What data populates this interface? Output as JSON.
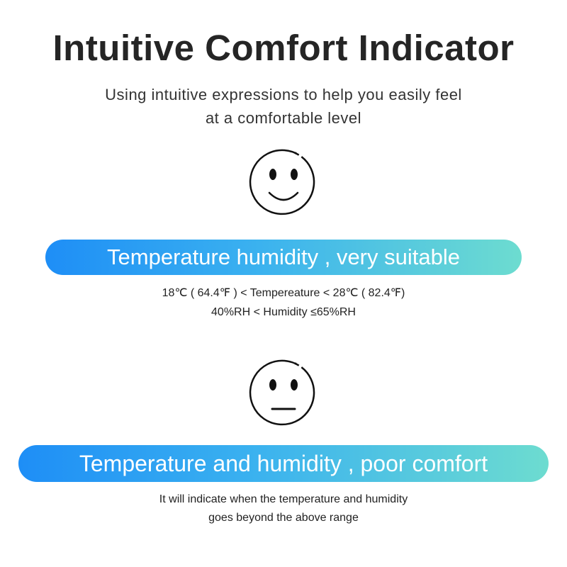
{
  "title": "Intuitive Comfort Indicator",
  "subtitle": [
    "Using intuitive expressions to help you easily feel",
    "at a comfortable level"
  ],
  "sections": [
    {
      "icon": "smiley-face-icon",
      "label": "Temperature humidity , very suitable",
      "details": [
        "18℃ ( 64.4℉ ) < Tempereature < 28℃ ( 82.4℉)",
        "40%RH  <  Humidity ≤65%RH"
      ]
    },
    {
      "icon": "neutral-face-icon",
      "label": "Temperature and humidity , poor comfort",
      "details": [
        "It will indicate when the temperature and humidity",
        "goes beyond the above range"
      ]
    }
  ],
  "colors": {
    "gradient_start": "#1e8ef6",
    "gradient_end": "#6ddcd0"
  }
}
